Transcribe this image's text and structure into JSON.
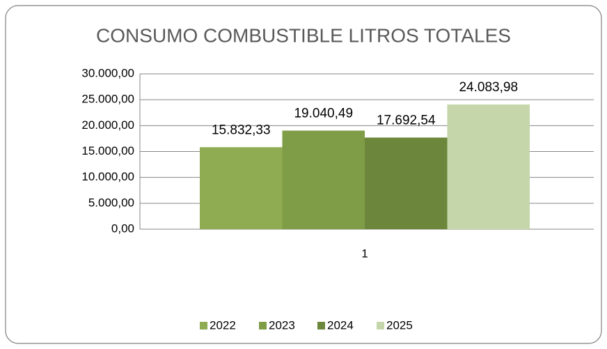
{
  "chart_data": {
    "type": "bar",
    "title": "CONSUMO COMBUSTIBLE LITROS TOTALES",
    "categories": [
      "1"
    ],
    "series": [
      {
        "name": "2022",
        "color": "#8fac52",
        "values": [
          15832.33
        ],
        "value_labels": [
          "15.832,33"
        ]
      },
      {
        "name": "2023",
        "color": "#7f9c47",
        "values": [
          19040.49
        ],
        "value_labels": [
          "19.040,49"
        ]
      },
      {
        "name": "2024",
        "color": "#6c873b",
        "values": [
          17692.54
        ],
        "value_labels": [
          "17.692,54"
        ]
      },
      {
        "name": "2025",
        "color": "#c4d6aa",
        "values": [
          24083.98
        ],
        "value_labels": [
          "24.083,98"
        ]
      }
    ],
    "ylim": [
      0,
      30000
    ],
    "yticks": [
      {
        "value": 0,
        "label": "0,00"
      },
      {
        "value": 5000,
        "label": "5.000,00"
      },
      {
        "value": 10000,
        "label": "10.000,00"
      },
      {
        "value": 15000,
        "label": "15.000,00"
      },
      {
        "value": 20000,
        "label": "20.000,00"
      },
      {
        "value": 25000,
        "label": "25.000,00"
      },
      {
        "value": 30000,
        "label": "30.000,00"
      }
    ],
    "grid": true,
    "legend": "bottom"
  }
}
